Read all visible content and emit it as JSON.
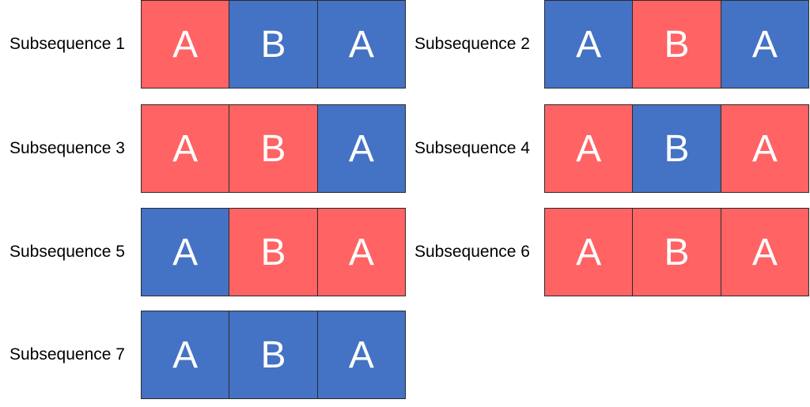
{
  "colors": {
    "red": "#ff6363",
    "blue": "#4472c4"
  },
  "subsequences": [
    {
      "label": "Subsequence 1",
      "cells": [
        {
          "letter": "A",
          "color": "red"
        },
        {
          "letter": "B",
          "color": "blue"
        },
        {
          "letter": "A",
          "color": "blue"
        }
      ]
    },
    {
      "label": "Subsequence 2",
      "cells": [
        {
          "letter": "A",
          "color": "blue"
        },
        {
          "letter": "B",
          "color": "red"
        },
        {
          "letter": "A",
          "color": "blue"
        }
      ]
    },
    {
      "label": "Subsequence 3",
      "cells": [
        {
          "letter": "A",
          "color": "red"
        },
        {
          "letter": "B",
          "color": "red"
        },
        {
          "letter": "A",
          "color": "blue"
        }
      ]
    },
    {
      "label": "Subsequence 4",
      "cells": [
        {
          "letter": "A",
          "color": "red"
        },
        {
          "letter": "B",
          "color": "blue"
        },
        {
          "letter": "A",
          "color": "red"
        }
      ]
    },
    {
      "label": "Subsequence 5",
      "cells": [
        {
          "letter": "A",
          "color": "blue"
        },
        {
          "letter": "B",
          "color": "red"
        },
        {
          "letter": "A",
          "color": "red"
        }
      ]
    },
    {
      "label": "Subsequence 6",
      "cells": [
        {
          "letter": "A",
          "color": "red"
        },
        {
          "letter": "B",
          "color": "red"
        },
        {
          "letter": "A",
          "color": "red"
        }
      ]
    },
    {
      "label": "Subsequence 7",
      "cells": [
        {
          "letter": "A",
          "color": "blue"
        },
        {
          "letter": "B",
          "color": "blue"
        },
        {
          "letter": "A",
          "color": "blue"
        }
      ]
    }
  ]
}
